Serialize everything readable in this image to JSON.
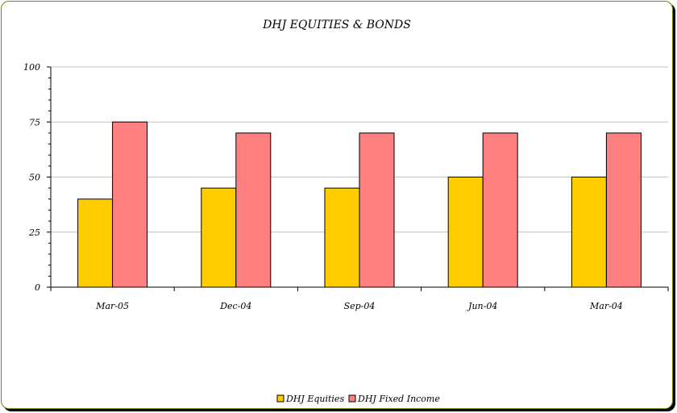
{
  "chart_data": {
    "type": "bar",
    "title": "DHJ EQUITIES & BONDS",
    "xlabel": "",
    "ylabel": "",
    "categories": [
      "Mar-05",
      "Dec-04",
      "Sep-04",
      "Jun-04",
      "Mar-04"
    ],
    "series": [
      {
        "name": "DHJ Equities",
        "values": [
          40,
          45,
          45,
          50,
          50
        ],
        "color": "#FFCC00"
      },
      {
        "name": "DHJ Fixed Income",
        "values": [
          75,
          70,
          70,
          70,
          70
        ],
        "color": "#FF8080"
      }
    ],
    "ylim": [
      0,
      100
    ],
    "yticks": [
      0,
      25,
      50,
      75,
      100
    ],
    "grid": true,
    "legend_position": "bottom"
  }
}
